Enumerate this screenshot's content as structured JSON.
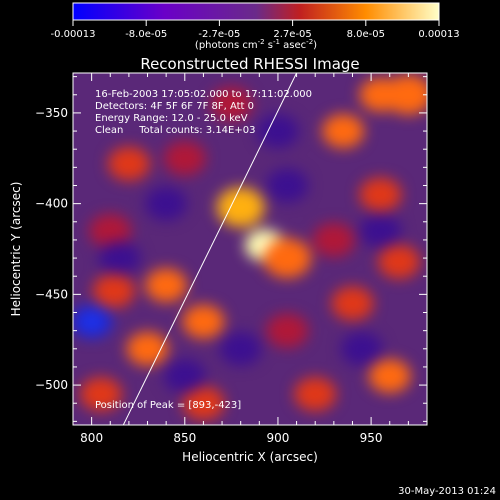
{
  "chart_data": {
    "type": "heatmap",
    "title": "Reconstructed RHESSI Image",
    "xlabel": "Heliocentric X (arcsec)",
    "ylabel": "Heliocentric Y (arcsec)",
    "xlim": [
      790,
      980
    ],
    "ylim": [
      -522,
      -328
    ],
    "x_ticks": [
      800,
      850,
      900,
      950
    ],
    "y_ticks": [
      -350,
      -400,
      -450,
      -500
    ],
    "colorbar": {
      "ticks": [
        "-0.00013",
        "-8.0e-05",
        "-2.7e-05",
        "2.7e-05",
        "8.0e-05",
        "0.00013"
      ],
      "range": [
        -0.00013,
        0.00013
      ],
      "label": "(photons cm",
      "label_sup1": "-2",
      "label_mid": " s",
      "label_sup2": "-1",
      "label_end": " asec",
      "label_sup3": "-2",
      "label_close": ")",
      "colors": [
        "#0000ff",
        "#6a00c8",
        "#6a2a8a",
        "#c02020",
        "#ff8c00",
        "#ffffc8"
      ]
    },
    "annotations": [
      "16-Feb-2003 17:05:02.000 to 17:11:02.000",
      "Detectors: 4F 5F 6F 7F 8F, Att 0",
      "Energy Range: 12.0 - 25.0 keV",
      "Clean     Total counts: 3.14E+03"
    ],
    "peak_label": "Position of Peak = [893,-423]",
    "peak": [
      893,
      -423
    ],
    "limb_line": [
      [
        817,
        -522
      ],
      [
        910,
        -328
      ]
    ],
    "blobs": [
      {
        "x": 893,
        "y": -423,
        "v": 1.0
      },
      {
        "x": 880,
        "y": -402,
        "v": 0.75
      },
      {
        "x": 905,
        "y": -430,
        "v": 0.6
      },
      {
        "x": 840,
        "y": -445,
        "v": 0.5
      },
      {
        "x": 812,
        "y": -448,
        "v": 0.45
      },
      {
        "x": 860,
        "y": -465,
        "v": 0.5
      },
      {
        "x": 905,
        "y": -470,
        "v": 0.35
      },
      {
        "x": 940,
        "y": -455,
        "v": 0.45
      },
      {
        "x": 830,
        "y": -480,
        "v": 0.55
      },
      {
        "x": 805,
        "y": -505,
        "v": 0.45
      },
      {
        "x": 860,
        "y": -510,
        "v": 0.4
      },
      {
        "x": 920,
        "y": -505,
        "v": 0.4
      },
      {
        "x": 960,
        "y": -495,
        "v": 0.5
      },
      {
        "x": 965,
        "y": -432,
        "v": 0.45
      },
      {
        "x": 955,
        "y": -395,
        "v": 0.4
      },
      {
        "x": 935,
        "y": -360,
        "v": 0.55
      },
      {
        "x": 970,
        "y": -340,
        "v": 0.65
      },
      {
        "x": 955,
        "y": -340,
        "v": 0.5
      },
      {
        "x": 820,
        "y": -378,
        "v": 0.4
      },
      {
        "x": 850,
        "y": -375,
        "v": 0.35
      },
      {
        "x": 810,
        "y": -415,
        "v": 0.3
      },
      {
        "x": 930,
        "y": -420,
        "v": 0.35
      },
      {
        "x": 875,
        "y": -345,
        "v": 0.35
      },
      {
        "x": 800,
        "y": -465,
        "v": -0.9
      },
      {
        "x": 840,
        "y": -400,
        "v": -0.35
      },
      {
        "x": 905,
        "y": -390,
        "v": -0.3
      },
      {
        "x": 880,
        "y": -480,
        "v": -0.3
      },
      {
        "x": 945,
        "y": -480,
        "v": -0.35
      },
      {
        "x": 815,
        "y": -430,
        "v": -0.3
      },
      {
        "x": 955,
        "y": -415,
        "v": -0.3
      },
      {
        "x": 850,
        "y": -495,
        "v": -0.25
      },
      {
        "x": 900,
        "y": -360,
        "v": -0.25
      }
    ]
  },
  "footer_date": "30-May-2013 01:24"
}
